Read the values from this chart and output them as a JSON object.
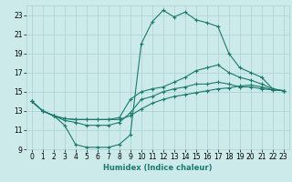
{
  "xlabel": "Humidex (Indice chaleur)",
  "ylabel": "",
  "bg_color": "#cdeaea",
  "grid_color": "#aacfcf",
  "line_color": "#1a7a6e",
  "xlim": [
    -0.5,
    23.5
  ],
  "ylim": [
    9,
    24
  ],
  "xticks": [
    0,
    1,
    2,
    3,
    4,
    5,
    6,
    7,
    8,
    9,
    10,
    11,
    12,
    13,
    14,
    15,
    16,
    17,
    18,
    19,
    20,
    21,
    22,
    23
  ],
  "yticks": [
    9,
    11,
    13,
    15,
    17,
    19,
    21,
    23
  ],
  "line1_x": [
    0,
    1,
    2,
    3,
    4,
    5,
    6,
    7,
    8,
    9,
    10,
    11,
    12,
    13,
    14,
    15,
    16,
    17,
    18,
    19,
    20,
    21,
    22,
    23
  ],
  "line1_y": [
    14.0,
    13.0,
    12.5,
    12.2,
    12.1,
    12.1,
    12.1,
    12.1,
    12.1,
    12.5,
    13.2,
    13.8,
    14.2,
    14.5,
    14.7,
    14.9,
    15.1,
    15.3,
    15.4,
    15.6,
    15.7,
    15.5,
    15.2,
    15.1
  ],
  "line2_x": [
    0,
    1,
    2,
    3,
    4,
    5,
    6,
    7,
    8,
    9,
    10,
    11,
    12,
    13,
    14,
    15,
    16,
    17,
    18,
    19,
    20,
    21,
    22,
    23
  ],
  "line2_y": [
    14.0,
    13.0,
    12.5,
    11.5,
    9.5,
    9.2,
    9.2,
    9.2,
    9.5,
    10.5,
    20.0,
    22.3,
    23.5,
    22.8,
    23.3,
    22.5,
    22.2,
    21.8,
    19.0,
    17.5,
    17.0,
    16.5,
    15.3,
    15.1
  ],
  "line3_x": [
    0,
    1,
    2,
    3,
    4,
    5,
    6,
    7,
    8,
    9,
    10,
    11,
    12,
    13,
    14,
    15,
    16,
    17,
    18,
    19,
    20,
    21,
    22,
    23
  ],
  "line3_y": [
    14.0,
    13.0,
    12.5,
    12.2,
    12.1,
    12.1,
    12.1,
    12.1,
    12.3,
    14.2,
    15.0,
    15.3,
    15.5,
    16.0,
    16.5,
    17.2,
    17.5,
    17.8,
    17.0,
    16.5,
    16.2,
    15.8,
    15.3,
    15.1
  ],
  "line4_x": [
    0,
    1,
    2,
    3,
    4,
    5,
    6,
    7,
    8,
    9,
    10,
    11,
    12,
    13,
    14,
    15,
    16,
    17,
    18,
    19,
    20,
    21,
    22,
    23
  ],
  "line4_y": [
    14.0,
    13.0,
    12.5,
    12.0,
    11.8,
    11.5,
    11.5,
    11.5,
    11.8,
    12.8,
    14.2,
    14.5,
    15.0,
    15.3,
    15.5,
    15.8,
    15.8,
    16.0,
    15.8,
    15.5,
    15.5,
    15.3,
    15.2,
    15.1
  ],
  "marker": "+",
  "markersize": 3,
  "linewidth": 0.8,
  "axis_fontsize": 6,
  "tick_fontsize": 5.5
}
